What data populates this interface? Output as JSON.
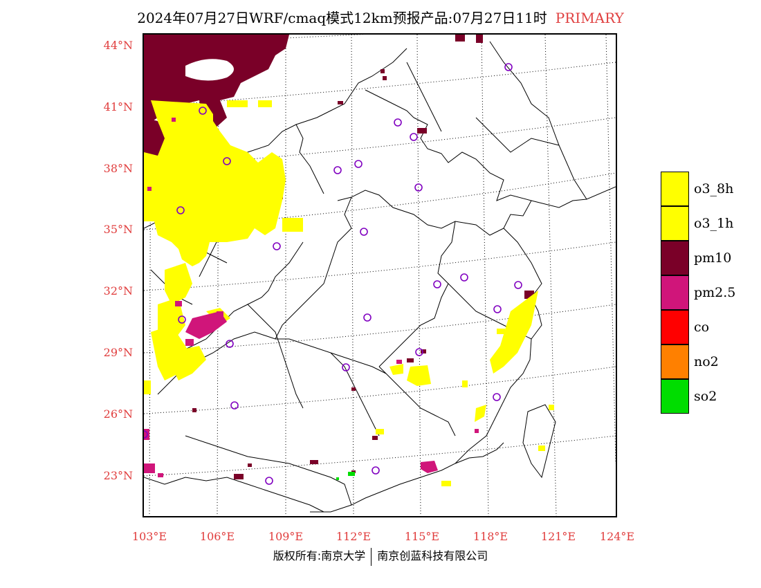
{
  "title": {
    "main": "2024年07月27日WRF/cmaq模式12km预报产品:07月27日11时",
    "tag": "PRIMARY"
  },
  "map": {
    "lat_labels": [
      "44°N",
      "41°N",
      "38°N",
      "35°N",
      "32°N",
      "29°N",
      "26°N",
      "23°N"
    ],
    "lon_labels": [
      "103°E",
      "106°E",
      "109°E",
      "112°E",
      "115°E",
      "118°E",
      "121°E",
      "124°E"
    ]
  },
  "legend": {
    "items": [
      {
        "label": "o3_8h",
        "color": "#ffff00"
      },
      {
        "label": "o3_1h",
        "color": "#ffff00"
      },
      {
        "label": "pm10",
        "color": "#7a0028"
      },
      {
        "label": "pm2.5",
        "color": "#d0157a"
      },
      {
        "label": "co",
        "color": "#ff0000"
      },
      {
        "label": "no2",
        "color": "#ff8000"
      },
      {
        "label": "so2",
        "color": "#00dd00"
      }
    ]
  },
  "colors": {
    "o3": "#ffff00",
    "pm10": "#7a0028",
    "pm25": "#d0157a",
    "so2": "#00dd00",
    "station": "#8000c0",
    "axis_label": "#e03c3c"
  },
  "footer": {
    "left": "版权所有:南京大学",
    "right": "南京创蓝科技有限公司"
  }
}
